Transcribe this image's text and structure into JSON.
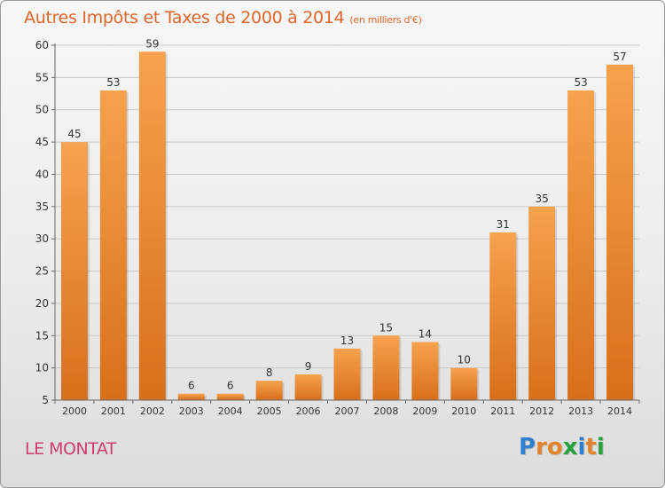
{
  "title": "Autres Impôts et Taxes de 2000 à 2014",
  "unit": "(en milliers d'€)",
  "commune": "LE MONTAT",
  "logo": {
    "text": "Proxiti",
    "letters": [
      "P",
      "r",
      "o",
      "x",
      "i",
      "t",
      "i"
    ],
    "colors": [
      "#2f7fd1",
      "#e5832c",
      "#e5832c",
      "#27a33e",
      "#2f7fd1",
      "#e5832c",
      "#27a33e"
    ]
  },
  "colors": {
    "title": "#e0662b",
    "commune": "#d23d6e",
    "bar_top": "#f7a24e",
    "bar_bottom": "#d86f1a",
    "grid": "#c8c8c8",
    "axis": "#666666"
  },
  "chart_data": {
    "type": "bar",
    "categories": [
      "2000",
      "2001",
      "2002",
      "2003",
      "2004",
      "2005",
      "2006",
      "2007",
      "2008",
      "2009",
      "2010",
      "2011",
      "2012",
      "2013",
      "2014"
    ],
    "values": [
      45,
      53,
      59,
      6,
      6,
      8,
      9,
      13,
      15,
      14,
      10,
      31,
      35,
      53,
      57
    ],
    "title": "Autres Impôts et Taxes de 2000 à 2014",
    "xlabel": "",
    "ylabel": "",
    "ylim": [
      5,
      60
    ],
    "yticks": [
      5,
      10,
      15,
      20,
      25,
      30,
      35,
      40,
      45,
      50,
      55,
      60
    ],
    "grid": true,
    "data_labels": true
  }
}
